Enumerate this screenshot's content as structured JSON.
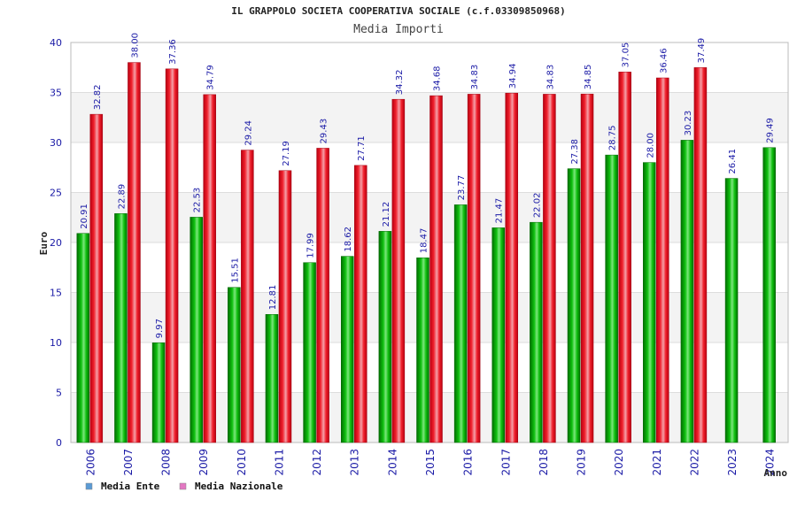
{
  "chart_data": {
    "type": "bar",
    "title": "IL GRAPPOLO SOCIETA COOPERATIVA SOCIALE (c.f.03309850968)",
    "subtitle": "Media Importi",
    "xlabel": "Anno",
    "ylabel": "Euro",
    "ylim": [
      0,
      40
    ],
    "yticks": [
      0,
      5,
      10,
      15,
      20,
      25,
      30,
      35,
      40
    ],
    "grid": true,
    "legend_position": "bottom-left",
    "categories": [
      "2006",
      "2007",
      "2008",
      "2009",
      "2010",
      "2011",
      "2012",
      "2013",
      "2014",
      "2015",
      "2016",
      "2017",
      "2018",
      "2019",
      "2020",
      "2021",
      "2022",
      "2023",
      "2024"
    ],
    "series": [
      {
        "name": "Media Ente",
        "legend_color": "#5b9bd5",
        "bar_color": "#00b000",
        "values": [
          20.91,
          22.89,
          9.97,
          22.53,
          15.51,
          12.81,
          17.99,
          18.62,
          21.12,
          18.47,
          23.77,
          21.47,
          22.02,
          27.38,
          28.75,
          28.0,
          30.23,
          26.41,
          29.49
        ],
        "labels": [
          "20.91",
          "22.89",
          "9.97",
          "22.53",
          "15.51",
          "12.81",
          "17.99",
          "18.62",
          "21.12",
          "18.47",
          "23.77",
          "21.47",
          "22.02",
          "27.38",
          "28.75",
          "28.00",
          "30.23",
          "26.41",
          "29.49"
        ]
      },
      {
        "name": "Media Nazionale",
        "legend_color": "#e377c2",
        "bar_color": "#e8202a",
        "values": [
          32.82,
          38.0,
          37.36,
          34.79,
          29.24,
          27.19,
          29.43,
          27.71,
          34.32,
          34.68,
          34.83,
          34.94,
          34.83,
          34.85,
          37.05,
          36.46,
          37.49,
          null,
          null
        ],
        "labels": [
          "32.82",
          "38.00",
          "37.36",
          "34.79",
          "29.24",
          "27.19",
          "29.43",
          "27.71",
          "34.32",
          "34.68",
          "34.83",
          "34.94",
          "34.83",
          "34.85",
          "37.05",
          "36.46",
          "37.49",
          null,
          null
        ]
      }
    ]
  }
}
